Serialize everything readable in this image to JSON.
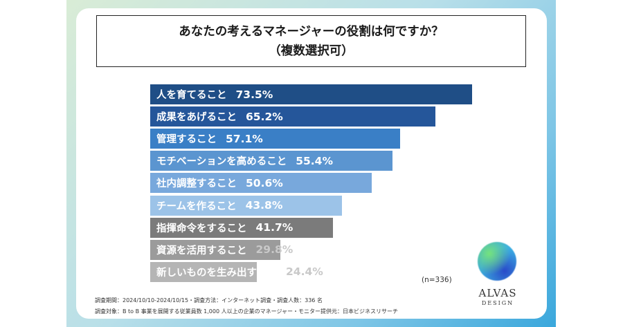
{
  "chart_data": {
    "type": "bar",
    "orientation": "horizontal",
    "title_line1": "あなたの考えるマネージャーの役割は何ですか？",
    "title_line2": "（複数選択可）",
    "xlim": [
      0,
      100
    ],
    "unit": "%",
    "categories": [
      "人を育てること",
      "成果をあげること",
      "管理すること",
      "モチベーションを高めること",
      "社内調整すること",
      "チームを作ること",
      "指揮命令をすること",
      "資源を活用すること",
      "新しいものを生み出すこと"
    ],
    "values": [
      73.5,
      65.2,
      57.1,
      55.4,
      50.6,
      43.8,
      41.7,
      29.8,
      24.4
    ],
    "value_labels": [
      "73.5%",
      "65.2%",
      "57.1%",
      "55.4%",
      "50.6%",
      "43.8%",
      "41.7%",
      "29.8%",
      "24.4%"
    ],
    "colors": [
      "#1f4e86",
      "#25569a",
      "#3a7fc6",
      "#5b95d0",
      "#78a8dc",
      "#9cc3e8",
      "#7b7b7b",
      "#9b9b9b",
      "#b5b5b5"
    ],
    "sample_note": "(n=336)"
  },
  "footer": {
    "line1": "調査期間：2024/10/10-2024/10/15・調査方法：インターネット調査・調査人数：336 名",
    "line2": "調査対象：B to B 事業を展開する従業員数 1,000 人以上の企業のマネージャー・モニター提供元：日本ビジネスリサーチ"
  },
  "logo": {
    "name": "ALVAS",
    "sub": "DESIGN"
  }
}
